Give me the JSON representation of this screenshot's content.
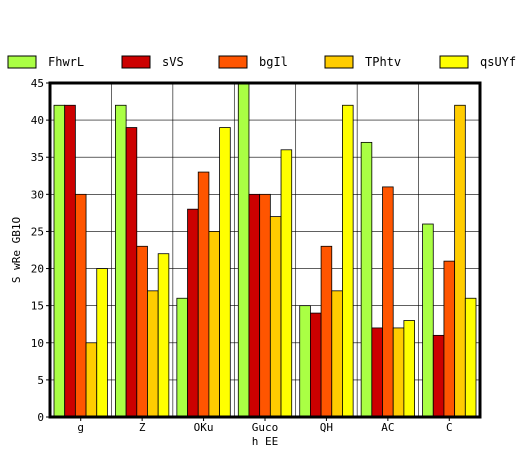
{
  "chart_data": {
    "type": "bar",
    "title": "",
    "xlabel": "h EE",
    "ylabel": "S wRe GB1O",
    "categories": [
      "g",
      "Z",
      "OKu",
      "Guco",
      "QH",
      "AC",
      "C"
    ],
    "ylim": [
      0,
      45
    ],
    "yticks": [
      0,
      5,
      10,
      15,
      20,
      25,
      30,
      35,
      40,
      45
    ],
    "grid": true,
    "legend_position": "top",
    "series": [
      {
        "name": "FhwrL",
        "color": "#aaff44",
        "values": [
          42,
          42,
          16,
          45,
          15,
          37,
          26
        ]
      },
      {
        "name": "sVS",
        "color": "#cc0000",
        "values": [
          42,
          39,
          28,
          30,
          14,
          12,
          11
        ]
      },
      {
        "name": "bgIl",
        "color": "#ff5500",
        "values": [
          30,
          23,
          33,
          30,
          23,
          31,
          21
        ]
      },
      {
        "name": "TPhtv",
        "color": "#ffcc00",
        "values": [
          10,
          17,
          25,
          27,
          17,
          12,
          42
        ]
      },
      {
        "name": "qsUYf",
        "color": "#ffff00",
        "values": [
          20,
          22,
          39,
          36,
          42,
          13,
          16
        ]
      }
    ]
  }
}
